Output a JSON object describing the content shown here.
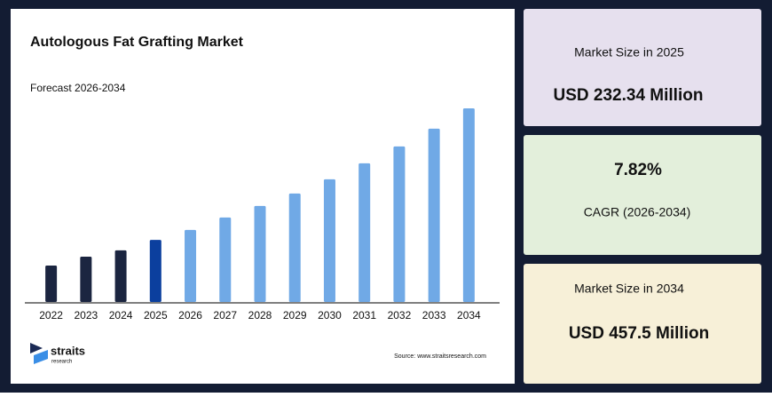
{
  "chart_data": {
    "type": "bar",
    "title": "Autologous Fat Grafting Market",
    "subtitle": "Forecast 2026-2034",
    "categories": [
      "2022",
      "2023",
      "2024",
      "2025",
      "2026",
      "2027",
      "2028",
      "2029",
      "2030",
      "2031",
      "2032",
      "2033",
      "2034"
    ],
    "values": [
      188.4,
      203.6,
      214.3,
      232.34,
      249.3,
      270.6,
      290.4,
      311.7,
      336,
      363.4,
      392.3,
      422.8,
      457.5
    ],
    "colors": [
      "#1b2540",
      "#1b2540",
      "#1b2540",
      "#0b3f9e",
      "#70a9e6",
      "#70a9e6",
      "#70a9e6",
      "#70a9e6",
      "#70a9e6",
      "#70a9e6",
      "#70a9e6",
      "#70a9e6",
      "#70a9e6"
    ],
    "ylim": [
      126,
      457.5
    ],
    "source": "Source: www.straitsresearch.com"
  },
  "logo": {
    "name": "straits",
    "tagline": "research"
  },
  "cards": [
    {
      "label": "Market Size in 2025",
      "value": "USD 232.34 Million"
    },
    {
      "value": "7.82%",
      "label": "CAGR (2026-2034)"
    },
    {
      "label": "Market Size in 2034",
      "value": "USD 457.5 Million"
    }
  ]
}
